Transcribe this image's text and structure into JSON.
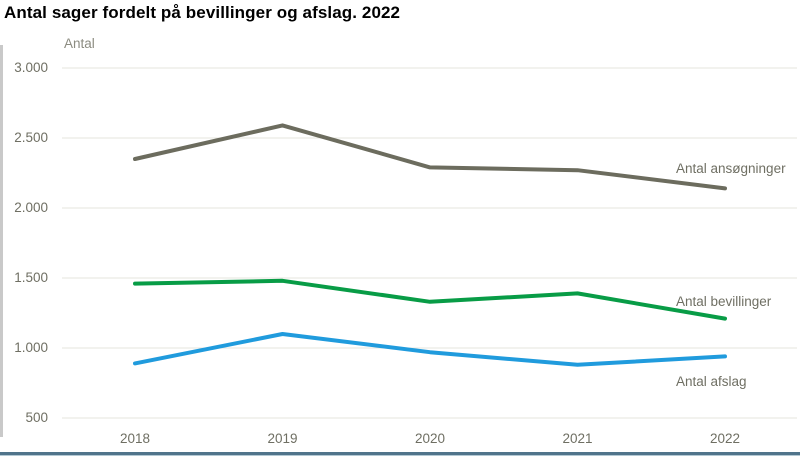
{
  "title": "Antal sager fordelt på bevillinger og afslag. 2022",
  "unit_label": "Antal",
  "chart_data": {
    "type": "line",
    "title": "Antal sager fordelt på bevillinger og afslag. 2022",
    "ylabel": "Antal",
    "xlabel": "",
    "categories": [
      "2018",
      "2019",
      "2020",
      "2021",
      "2022"
    ],
    "series": [
      {
        "name": "Antal ansøgninger",
        "color": "#6c6c5e",
        "values": [
          2350,
          2590,
          2290,
          2270,
          2140
        ]
      },
      {
        "name": "Antal bevillinger",
        "color": "#089c46",
        "values": [
          1460,
          1480,
          1330,
          1390,
          1210
        ]
      },
      {
        "name": "Antal afslag",
        "color": "#209bdd",
        "values": [
          890,
          1100,
          970,
          880,
          940
        ]
      }
    ],
    "ylim": [
      500,
      3000
    ],
    "ytick_values": [
      3000,
      2500,
      2000,
      1500,
      1000,
      500
    ],
    "ytick_labels": [
      "3.000",
      "2.500",
      "2.000",
      "1.500",
      "1.000",
      "500"
    ],
    "grid": "horizontal-only",
    "legend_position": "inline-right-of-lines"
  },
  "colors": {
    "grid": "#e5e5de",
    "axis_text": "#6f6f63",
    "unit_text": "#8b8b80",
    "left_strip": "#c9c9c9",
    "bottom_border": "#50748b",
    "bottom_border_light": "#b3c9d4"
  }
}
